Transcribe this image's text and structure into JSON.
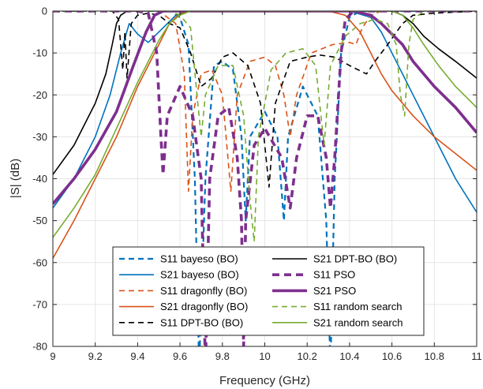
{
  "chart_data": {
    "type": "line",
    "title": "",
    "xlabel": "Frequency (GHz)",
    "ylabel": "|S| (dB)",
    "xlim": [
      9,
      11
    ],
    "ylim": [
      -80,
      0
    ],
    "xticks": [
      "9",
      "9.2",
      "9.4",
      "9.6",
      "9.8",
      "10",
      "10.2",
      "10.4",
      "10.6",
      "10.8",
      "11"
    ],
    "yticks": [
      "0",
      "-10",
      "-20",
      "-30",
      "-40",
      "-50",
      "-60",
      "-70",
      "-80"
    ],
    "grid": true,
    "legend_position": "bottom-center",
    "series": [
      {
        "name": "S11 bayeso (BO)",
        "color": "#0072BD",
        "style": "dashed",
        "width": 2.2,
        "points": [
          [
            9.0,
            0
          ],
          [
            9.55,
            0
          ],
          [
            9.6,
            -1.5
          ],
          [
            9.64,
            -8
          ],
          [
            9.67,
            -40
          ],
          [
            9.69,
            -85
          ],
          [
            9.72,
            -40
          ],
          [
            9.76,
            -13
          ],
          [
            9.8,
            -12
          ],
          [
            9.85,
            -14
          ],
          [
            9.89,
            -30
          ],
          [
            9.91,
            -50
          ],
          [
            9.93,
            -30
          ],
          [
            10.0,
            -24
          ],
          [
            10.06,
            -30
          ],
          [
            10.09,
            -50
          ],
          [
            10.11,
            -30
          ],
          [
            10.18,
            -18
          ],
          [
            10.25,
            -25
          ],
          [
            10.29,
            -50
          ],
          [
            10.31,
            -85
          ],
          [
            10.33,
            -40
          ],
          [
            10.36,
            -10
          ],
          [
            10.4,
            -1.5
          ],
          [
            10.45,
            0
          ],
          [
            11.0,
            0
          ]
        ]
      },
      {
        "name": "S21 bayeso (BO)",
        "color": "#0072BD",
        "style": "solid",
        "width": 1.6,
        "points": [
          [
            9.0,
            -47
          ],
          [
            9.1,
            -40
          ],
          [
            9.2,
            -30
          ],
          [
            9.27,
            -20
          ],
          [
            9.32,
            -10
          ],
          [
            9.36,
            -3
          ],
          [
            9.4,
            -5.5
          ],
          [
            9.45,
            -7.5
          ],
          [
            9.5,
            -5
          ],
          [
            9.58,
            -1
          ],
          [
            9.65,
            0
          ],
          [
            10.4,
            0
          ],
          [
            10.5,
            -1.5
          ],
          [
            10.55,
            -5
          ],
          [
            10.62,
            -12
          ],
          [
            10.7,
            -20
          ],
          [
            10.8,
            -30
          ],
          [
            10.9,
            -40
          ],
          [
            11.0,
            -48
          ]
        ]
      },
      {
        "name": "S11 dragonfly (BO)",
        "color": "#D95319",
        "style": "dashed",
        "width": 1.6,
        "points": [
          [
            9.0,
            0
          ],
          [
            9.5,
            0
          ],
          [
            9.58,
            -3
          ],
          [
            9.62,
            -15
          ],
          [
            9.64,
            -43
          ],
          [
            9.66,
            -25
          ],
          [
            9.7,
            -15
          ],
          [
            9.75,
            -14
          ],
          [
            9.8,
            -20
          ],
          [
            9.84,
            -43
          ],
          [
            9.87,
            -20
          ],
          [
            9.93,
            -12
          ],
          [
            10.0,
            -11
          ],
          [
            10.05,
            -13
          ],
          [
            10.09,
            -20
          ],
          [
            10.12,
            -30
          ],
          [
            10.15,
            -20
          ],
          [
            10.22,
            -10
          ],
          [
            10.32,
            -8
          ],
          [
            10.4,
            -7.5
          ],
          [
            10.43,
            -8
          ],
          [
            10.46,
            -4
          ],
          [
            10.5,
            -1
          ],
          [
            10.55,
            0
          ],
          [
            11.0,
            0
          ]
        ]
      },
      {
        "name": "S21 dragonfly (BO)",
        "color": "#D95319",
        "style": "solid",
        "width": 1.6,
        "points": [
          [
            9.0,
            -59
          ],
          [
            9.1,
            -50
          ],
          [
            9.2,
            -40
          ],
          [
            9.3,
            -30
          ],
          [
            9.4,
            -18
          ],
          [
            9.5,
            -8
          ],
          [
            9.55,
            -3
          ],
          [
            9.6,
            -0.5
          ],
          [
            9.65,
            0
          ],
          [
            10.3,
            0
          ],
          [
            10.38,
            -1
          ],
          [
            10.45,
            -5
          ],
          [
            10.5,
            -10
          ],
          [
            10.55,
            -15
          ],
          [
            10.6,
            -19
          ],
          [
            10.7,
            -25
          ],
          [
            10.8,
            -30
          ],
          [
            10.9,
            -34
          ],
          [
            11.0,
            -38
          ]
        ]
      },
      {
        "name": "S11 DPT-BO (BO)",
        "color": "#000000",
        "style": "dashed",
        "width": 1.6,
        "points": [
          [
            9.0,
            0
          ],
          [
            9.28,
            0
          ],
          [
            9.31,
            -2
          ],
          [
            9.33,
            -14
          ],
          [
            9.34,
            -5
          ],
          [
            9.35,
            -16
          ],
          [
            9.37,
            -3
          ],
          [
            9.4,
            -1
          ],
          [
            9.45,
            -0.5
          ],
          [
            9.5,
            -1
          ],
          [
            9.55,
            -3
          ],
          [
            9.6,
            -4
          ],
          [
            9.65,
            -10
          ],
          [
            9.7,
            -18
          ],
          [
            9.75,
            -16
          ],
          [
            9.8,
            -11
          ],
          [
            9.85,
            -10
          ],
          [
            9.92,
            -13
          ],
          [
            9.98,
            -22
          ],
          [
            10.02,
            -42
          ],
          [
            10.05,
            -22
          ],
          [
            10.12,
            -12
          ],
          [
            10.2,
            -11
          ],
          [
            10.26,
            -10.5
          ],
          [
            10.33,
            -11
          ],
          [
            10.4,
            -13
          ],
          [
            10.48,
            -15
          ],
          [
            10.52,
            -12
          ],
          [
            10.58,
            -8
          ],
          [
            10.65,
            -3
          ],
          [
            10.7,
            -1
          ],
          [
            10.8,
            -0.5
          ],
          [
            11.0,
            0
          ]
        ]
      },
      {
        "name": "S21 DPT-BO (BO)",
        "color": "#000000",
        "style": "solid",
        "width": 1.6,
        "points": [
          [
            9.0,
            -39
          ],
          [
            9.1,
            -32
          ],
          [
            9.2,
            -22
          ],
          [
            9.25,
            -15
          ],
          [
            9.28,
            -8
          ],
          [
            9.3,
            -3
          ],
          [
            9.32,
            -1
          ],
          [
            9.35,
            0
          ],
          [
            10.6,
            0
          ],
          [
            10.65,
            -1
          ],
          [
            10.7,
            -3
          ],
          [
            10.75,
            -6
          ],
          [
            10.82,
            -9
          ],
          [
            10.9,
            -12
          ],
          [
            11.0,
            -16
          ]
        ]
      },
      {
        "name": "S11 PSO",
        "color": "#7E2F8E",
        "style": "dashed",
        "width": 3.6,
        "points": [
          [
            9.0,
            0
          ],
          [
            9.4,
            0
          ],
          [
            9.45,
            -0.5
          ],
          [
            9.49,
            -10
          ],
          [
            9.51,
            -30
          ],
          [
            9.52,
            -39
          ],
          [
            9.54,
            -25
          ],
          [
            9.6,
            -18
          ],
          [
            9.66,
            -25
          ],
          [
            9.7,
            -40
          ],
          [
            9.72,
            -85
          ],
          [
            9.74,
            -40
          ],
          [
            9.78,
            -25
          ],
          [
            9.83,
            -23
          ],
          [
            9.87,
            -35
          ],
          [
            9.89,
            -50
          ],
          [
            9.9,
            -80
          ],
          [
            9.91,
            -50
          ],
          [
            9.95,
            -32
          ],
          [
            10.0,
            -28
          ],
          [
            10.08,
            -35
          ],
          [
            10.12,
            -47
          ],
          [
            10.15,
            -35
          ],
          [
            10.2,
            -25
          ],
          [
            10.25,
            -25
          ],
          [
            10.29,
            -35
          ],
          [
            10.31,
            -47
          ],
          [
            10.33,
            -35
          ],
          [
            10.36,
            -10
          ],
          [
            10.38,
            -2
          ],
          [
            10.42,
            0
          ],
          [
            11.0,
            0
          ]
        ]
      },
      {
        "name": "S21 PSO",
        "color": "#7E2F8E",
        "style": "solid",
        "width": 3.6,
        "points": [
          [
            9.0,
            -46
          ],
          [
            9.1,
            -40
          ],
          [
            9.2,
            -33
          ],
          [
            9.3,
            -24
          ],
          [
            9.38,
            -13
          ],
          [
            9.44,
            -5
          ],
          [
            9.48,
            -1
          ],
          [
            9.52,
            0
          ],
          [
            10.42,
            0
          ],
          [
            10.5,
            -1
          ],
          [
            10.55,
            -3
          ],
          [
            10.6,
            -5.5
          ],
          [
            10.65,
            -8
          ],
          [
            10.7,
            -12
          ],
          [
            10.8,
            -18
          ],
          [
            10.9,
            -23
          ],
          [
            11.0,
            -29
          ]
        ]
      },
      {
        "name": "S11 random search",
        "color": "#77AC30",
        "style": "dashed",
        "width": 1.6,
        "points": [
          [
            9.0,
            0
          ],
          [
            9.55,
            0
          ],
          [
            9.6,
            -1
          ],
          [
            9.65,
            -4
          ],
          [
            9.68,
            -20
          ],
          [
            9.7,
            -30
          ],
          [
            9.72,
            -20
          ],
          [
            9.78,
            -13
          ],
          [
            9.85,
            -13
          ],
          [
            9.9,
            -25
          ],
          [
            9.93,
            -45
          ],
          [
            9.95,
            -55
          ],
          [
            9.97,
            -30
          ],
          [
            10.03,
            -14
          ],
          [
            10.1,
            -10
          ],
          [
            10.18,
            -9
          ],
          [
            10.24,
            -13
          ],
          [
            10.28,
            -32
          ],
          [
            10.31,
            -13
          ],
          [
            10.38,
            -6
          ],
          [
            10.45,
            -3
          ],
          [
            10.52,
            -2
          ],
          [
            10.58,
            -3
          ],
          [
            10.62,
            -8
          ],
          [
            10.64,
            -20
          ],
          [
            10.66,
            -25
          ],
          [
            10.68,
            -8
          ],
          [
            10.7,
            -2
          ],
          [
            10.75,
            0
          ],
          [
            11.0,
            0
          ]
        ]
      },
      {
        "name": "S21 random search",
        "color": "#77AC30",
        "style": "solid",
        "width": 1.6,
        "points": [
          [
            9.0,
            -54
          ],
          [
            9.1,
            -47
          ],
          [
            9.2,
            -39
          ],
          [
            9.3,
            -28
          ],
          [
            9.4,
            -17
          ],
          [
            9.5,
            -7
          ],
          [
            9.55,
            -3
          ],
          [
            9.6,
            -1
          ],
          [
            9.65,
            0
          ],
          [
            10.6,
            0
          ],
          [
            10.65,
            -1
          ],
          [
            10.7,
            -4
          ],
          [
            10.75,
            -8
          ],
          [
            10.82,
            -13
          ],
          [
            10.9,
            -18
          ],
          [
            11.0,
            -23
          ]
        ]
      }
    ]
  }
}
